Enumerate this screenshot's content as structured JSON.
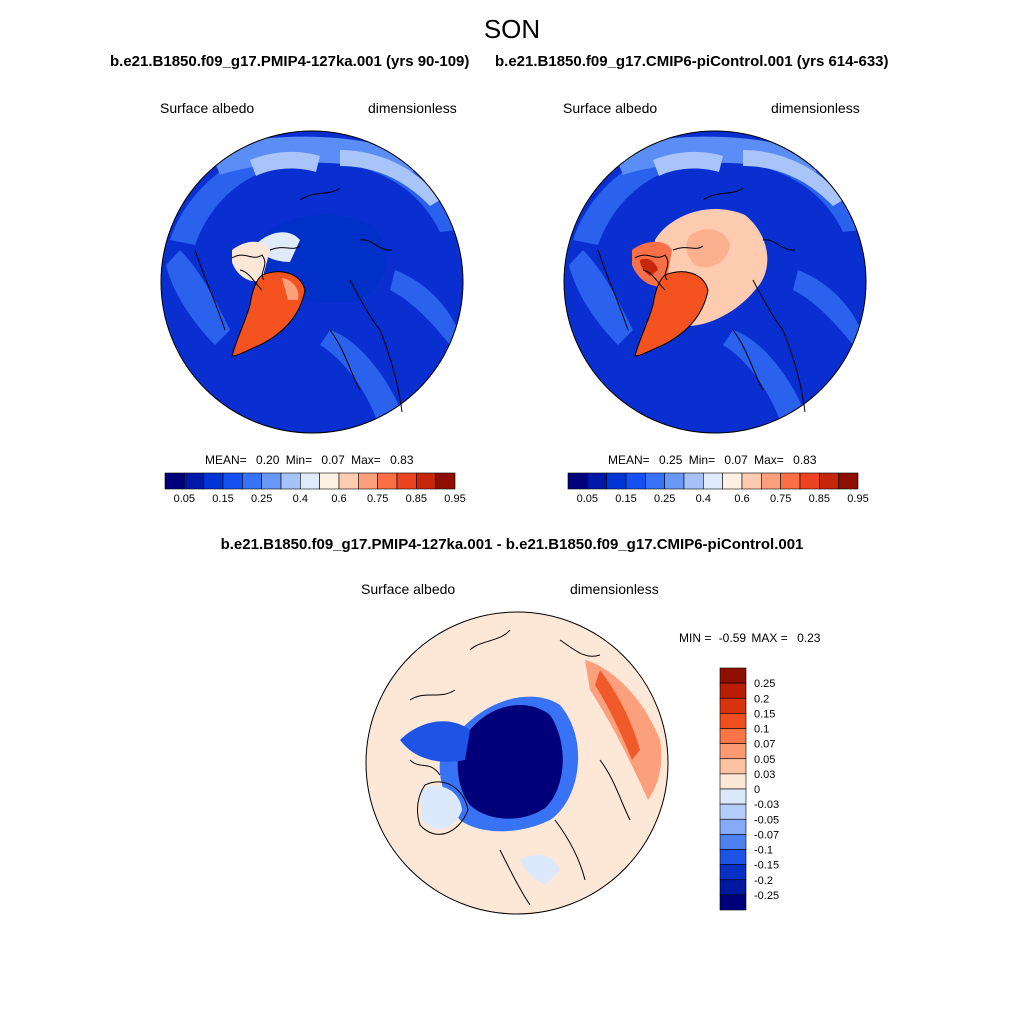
{
  "page": {
    "title": "SON",
    "case_a": "b.e21.B1850.f09_g17.PMIP4-127ka.001 (yrs 90-109)",
    "case_b": "b.e21.B1850.f09_g17.CMIP6-piControl.001 (yrs 614-633)",
    "diff_title": "b.e21.B1850.f09_g17.PMIP4-127ka.001 - b.e21.B1850.f09_g17.CMIP6-piControl.001"
  },
  "chart_data": [
    {
      "type": "heatmap",
      "projection": "north-polar-stereographic",
      "variable": "Surface albedo",
      "units": "dimensionless",
      "stats": {
        "mean_label": "MEAN=",
        "mean": "0.20",
        "min_label": "Min=",
        "min": "0.07",
        "max_label": "Max=",
        "max": "0.83"
      },
      "colorbar": {
        "orientation": "horizontal",
        "levels": [
          0.05,
          0.1,
          0.15,
          0.2,
          0.25,
          0.3,
          0.4,
          0.5,
          0.6,
          0.7,
          0.75,
          0.8,
          0.85,
          0.9,
          0.95
        ],
        "tick_labels": [
          "0.05",
          "0.15",
          "0.25",
          "0.4",
          "0.6",
          "0.75",
          "0.85",
          "0.95"
        ],
        "colors": [
          "#00007a",
          "#0018a8",
          "#0034d4",
          "#1650f0",
          "#3872f5",
          "#6a98f7",
          "#a6c2f8",
          "#dfeafb",
          "#fff0e4",
          "#fdcbb0",
          "#fc9f7c",
          "#fb6e46",
          "#ec4420",
          "#c6260a",
          "#8e0f00"
        ]
      }
    },
    {
      "type": "heatmap",
      "projection": "north-polar-stereographic",
      "variable": "Surface albedo",
      "units": "dimensionless",
      "stats": {
        "mean_label": "MEAN=",
        "mean": "0.25",
        "min_label": "Min=",
        "min": "0.07",
        "max_label": "Max=",
        "max": "0.83"
      },
      "colorbar": {
        "orientation": "horizontal",
        "levels": [
          0.05,
          0.1,
          0.15,
          0.2,
          0.25,
          0.3,
          0.4,
          0.5,
          0.6,
          0.7,
          0.75,
          0.8,
          0.85,
          0.9,
          0.95
        ],
        "tick_labels": [
          "0.05",
          "0.15",
          "0.25",
          "0.4",
          "0.6",
          "0.75",
          "0.85",
          "0.95"
        ],
        "colors": [
          "#00007a",
          "#0018a8",
          "#0034d4",
          "#1650f0",
          "#3872f5",
          "#6a98f7",
          "#a6c2f8",
          "#dfeafb",
          "#fff0e4",
          "#fdcbb0",
          "#fc9f7c",
          "#fb6e46",
          "#ec4420",
          "#c6260a",
          "#8e0f00"
        ]
      }
    },
    {
      "type": "heatmap",
      "projection": "north-polar-stereographic",
      "variable": "Surface albedo",
      "units": "dimensionless",
      "stats": {
        "min_label": "MIN =",
        "min": "-0.59",
        "max_label": "MAX =",
        "max": "0.23"
      },
      "colorbar": {
        "orientation": "vertical",
        "tick_labels": [
          "0.25",
          "0.2",
          "0.15",
          "0.1",
          "0.07",
          "0.05",
          "0.03",
          "0",
          "-0.03",
          "-0.05",
          "-0.07",
          "-0.1",
          "-0.15",
          "-0.2",
          "-0.25"
        ],
        "colors": [
          "#8e0f00",
          "#b81e05",
          "#d8330f",
          "#f04e1e",
          "#f97446",
          "#fb9a72",
          "#fcc2a2",
          "#fde8d8",
          "#dce8fb",
          "#b4ccf8",
          "#86aaf5",
          "#4f80f0",
          "#1d54e6",
          "#0a2fc4",
          "#0018a0",
          "#00007a"
        ]
      }
    }
  ]
}
